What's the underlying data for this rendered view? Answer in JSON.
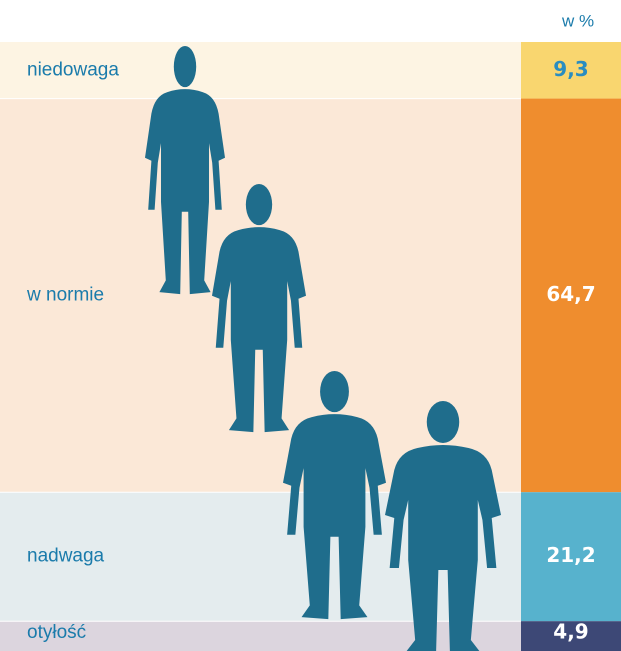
{
  "chart_data": {
    "type": "stacked-column",
    "unit_label": "w %",
    "categories": [
      "niedowaga",
      "w normie",
      "nadwaga",
      "otyłość"
    ],
    "values": [
      9.3,
      64.7,
      21.2,
      4.9
    ],
    "value_labels": [
      "9,3",
      "64,7",
      "21,2",
      "4,9"
    ],
    "colors": [
      "#f9d66f",
      "#ef8d2e",
      "#57b2cd",
      "#3d4876"
    ],
    "background_colors": [
      "#fdf4e3",
      "#fbe8d7",
      "#e4ecee",
      "#dcd5de"
    ],
    "label_colors": [
      "#2a8dc0",
      "#ffffff",
      "#ffffff",
      "#ffffff"
    ]
  }
}
